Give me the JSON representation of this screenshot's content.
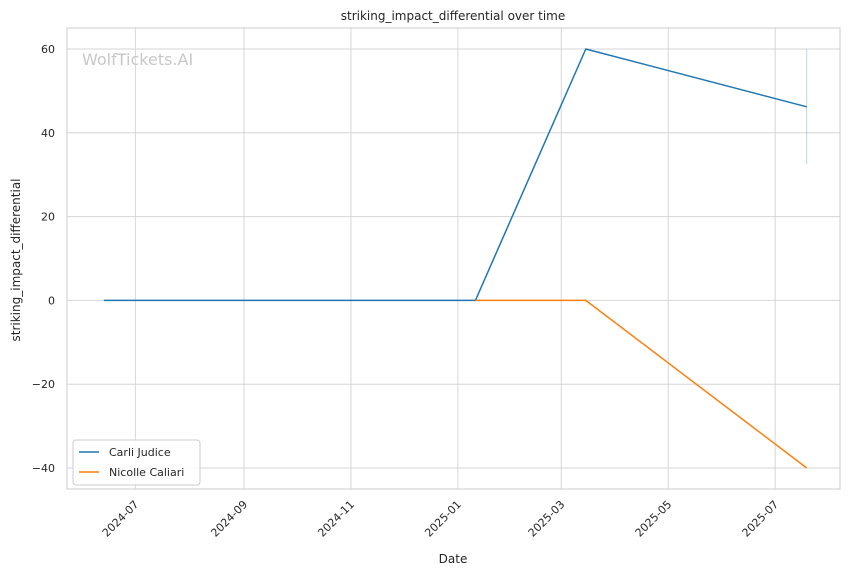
{
  "chart_data": {
    "type": "line",
    "title": "striking_impact_differential over time",
    "xlabel": "Date",
    "ylabel": "striking_impact_differential",
    "watermark": "WolfTickets.AI",
    "xlim": [
      "2024-05-23",
      "2025-08-07"
    ],
    "ylim": [
      -45,
      65
    ],
    "x_ticks": [
      "2024-07",
      "2024-09",
      "2024-11",
      "2025-01",
      "2025-03",
      "2025-05",
      "2025-07"
    ],
    "y_ticks": [
      60,
      40,
      20,
      0,
      -20,
      -40
    ],
    "y_tick_labels": [
      "60",
      "40",
      "20",
      "0",
      "−20",
      "−40"
    ],
    "grid": true,
    "legend_position": "lower-left",
    "series": [
      {
        "name": "Carli Judice",
        "color": "#1f77b4",
        "x": [
          "2024-06-13",
          "2025-01-11",
          "2025-03-15",
          "2025-07-19"
        ],
        "y": [
          0,
          0,
          60,
          46.2
        ],
        "error_band": {
          "x": "2025-07-19",
          "low": 32.5,
          "high": 60
        }
      },
      {
        "name": "Nicolle Caliari",
        "color": "#ff7f0e",
        "x": [
          "2025-01-11",
          "2025-03-15",
          "2025-07-19"
        ],
        "y": [
          0,
          0,
          -40
        ]
      }
    ]
  }
}
